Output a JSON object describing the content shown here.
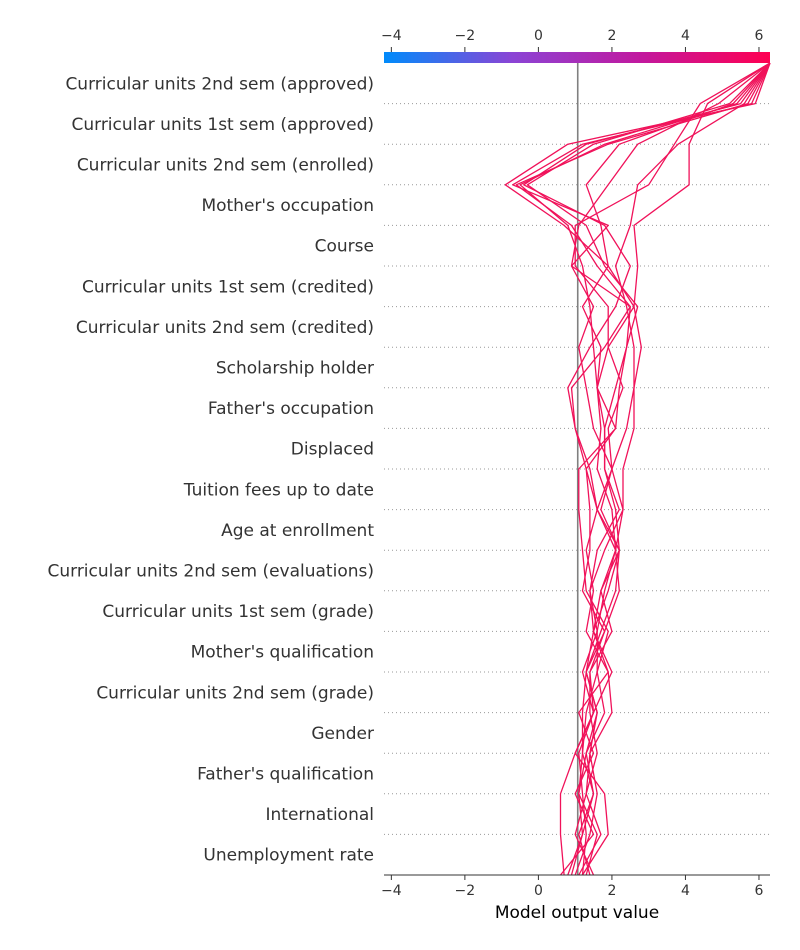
{
  "chart_data": {
    "type": "decision_plot",
    "xlabel": "Model output value",
    "xlim": [
      -4.2,
      6.3
    ],
    "x_ticks": [
      -4,
      -2,
      0,
      2,
      4,
      6
    ],
    "x_tick_labels": [
      "−4",
      "−2",
      "0",
      "2",
      "4",
      "6"
    ],
    "base_value": 1.07,
    "features": [
      "Curricular units 2nd sem (approved)",
      "Curricular units 1st sem (approved)",
      "Curricular units 2nd sem (enrolled)",
      "Mother's occupation",
      "Course",
      "Curricular units 1st sem (credited)",
      "Curricular units 2nd sem (credited)",
      "Scholarship holder",
      "Father's occupation",
      "Displaced",
      "Tuition fees up to date",
      "Age at enrollment",
      "Curricular units 2nd sem (evaluations)",
      "Curricular units 1st sem (grade)",
      "Mother's qualification",
      "Curricular units 2nd sem (grade)",
      "Gender",
      "Father's qualification",
      "International",
      "Unemployment rate"
    ],
    "colorbar": {
      "colors": [
        "#008bfb",
        "#8b44d5",
        "#c2189e",
        "#ff0051"
      ],
      "range": [
        -4.2,
        6.3
      ]
    },
    "series": [
      {
        "values": [
          0.6,
          1.5,
          1.0,
          1.5,
          1.1,
          1.9,
          1.5,
          1.4,
          1.6,
          2.2,
          1.8,
          1.8,
          1.6,
          1.7,
          1.2,
          1.9,
          1.7,
          1.3,
          2.2,
          5.3,
          6.3
        ]
      },
      {
        "values": [
          0.7,
          0.6,
          0.6,
          1.0,
          1.5,
          1.4,
          1.8,
          2.2,
          2.1,
          2.3,
          2.3,
          2.6,
          2.6,
          2.6,
          2.4,
          2.1,
          2.5,
          2.7,
          3.8,
          5.6,
          6.3
        ]
      },
      {
        "values": [
          0.9,
          1.2,
          1.5,
          1.3,
          1.8,
          1.6,
          1.6,
          1.4,
          1.8,
          2.3,
          2.0,
          2.4,
          2.6,
          2.8,
          2.6,
          2.7,
          2.6,
          4.1,
          4.1,
          4.6,
          6.3
        ]
      },
      {
        "values": [
          1.0,
          1.4,
          1.6,
          1.4,
          1.6,
          1.3,
          1.7,
          2.1,
          2.2,
          1.6,
          2.0,
          1.9,
          2.3,
          1.9,
          1.9,
          1.0,
          1.0,
          3.0,
          3.7,
          4.4,
          6.3
        ]
      },
      {
        "values": [
          1.1,
          1.7,
          1.3,
          1.4,
          2.0,
          1.9,
          1.3,
          1.5,
          1.3,
          1.6,
          1.3,
          1.0,
          0.8,
          1.4,
          2.1,
          2.5,
          1.8,
          -0.4,
          1.3,
          5.5,
          6.3
        ]
      },
      {
        "values": [
          1.2,
          1.9,
          1.8,
          1.0,
          1.5,
          2.0,
          1.5,
          1.7,
          2.1,
          1.6,
          1.4,
          1.0,
          0.9,
          1.8,
          2.5,
          0.9,
          1.9,
          -0.7,
          1.2,
          5.8,
          6.3
        ]
      },
      {
        "values": [
          1.3,
          1.6,
          1.1,
          1.2,
          1.2,
          1.3,
          1.8,
          1.2,
          1.4,
          1.4,
          1.3,
          2.1,
          2.2,
          2.4,
          2.7,
          1.8,
          1.3,
          -0.3,
          1.5,
          5.2,
          6.3
        ]
      },
      {
        "values": [
          1.4,
          1.1,
          1.5,
          1.2,
          1.3,
          1.6,
          1.9,
          1.3,
          1.2,
          1.1,
          1.1,
          2.1,
          1.6,
          1.9,
          2.6,
          1.9,
          0.7,
          -0.9,
          0.8,
          5.9,
          6.3
        ]
      },
      {
        "values": [
          1.5,
          1.0,
          1.3,
          1.6,
          1.4,
          1.4,
          2.0,
          1.7,
          2.2,
          1.7,
          2.0,
          1.5,
          1.3,
          1.1,
          1.5,
          0.9,
          1.1,
          1.9,
          2.7,
          4.9,
          6.3
        ]
      },
      {
        "values": [
          1.2,
          1.3,
          1.2,
          1.1,
          1.5,
          1.2,
          1.6,
          1.8,
          2.1,
          2.0,
          1.6,
          1.7,
          1.6,
          1.5,
          1.4,
          1.2,
          0.8,
          -0.5,
          1.8,
          5.4,
          6.3
        ]
      },
      {
        "values": [
          0.8,
          1.2,
          1.1,
          1.3,
          1.6,
          1.3,
          1.5,
          1.9,
          2.2,
          2.1,
          1.8,
          1.8,
          2.1,
          2.4,
          2.5,
          1.6,
          0.9,
          -0.6,
          1.9,
          5.7,
          6.3
        ]
      }
    ]
  }
}
